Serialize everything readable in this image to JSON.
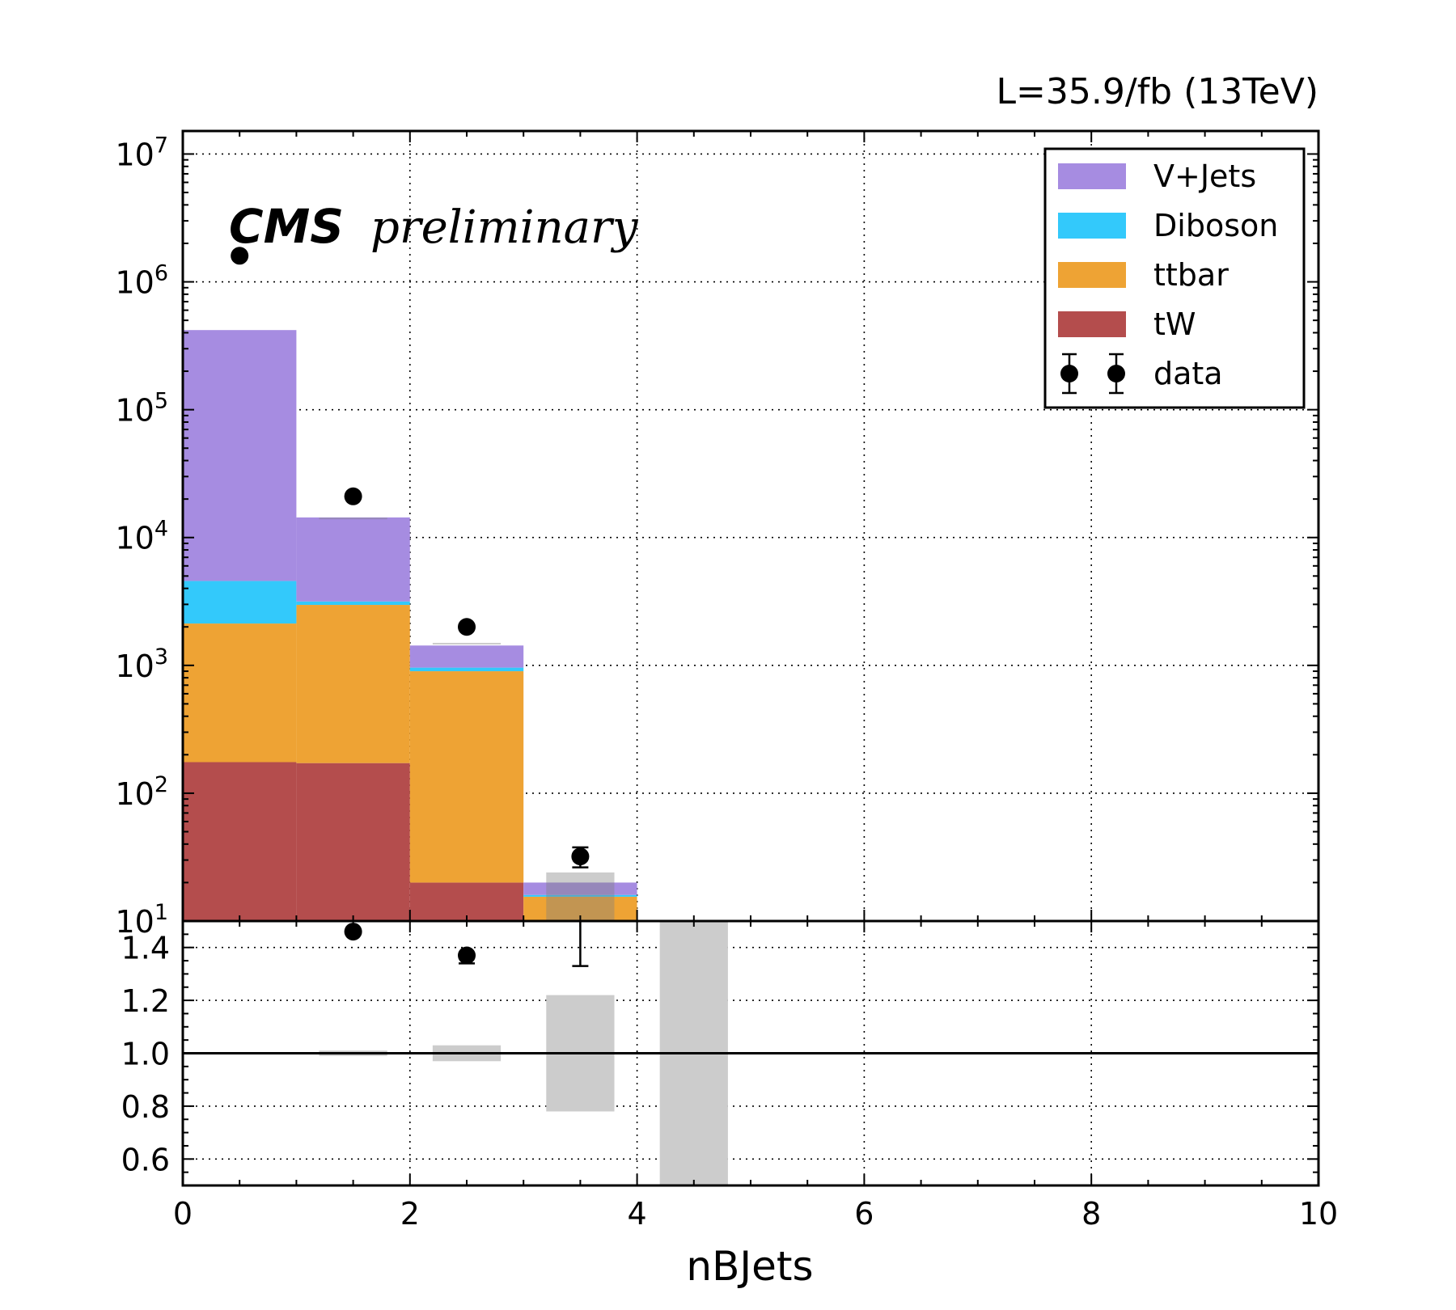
{
  "chart_data": {
    "type": "bar",
    "stacked": true,
    "lumi_label": "L=35.9/fb (13TeV)",
    "experiment_label": "CMS",
    "status_label": "preliminary",
    "xlabel": "nBJets",
    "xlim": [
      0,
      10
    ],
    "x_ticks": [
      "0",
      "2",
      "4",
      "6",
      "8",
      "10"
    ],
    "x_tick_values": [
      0,
      2,
      4,
      6,
      8,
      10
    ],
    "bin_edges": [
      0,
      1,
      2,
      3,
      4
    ],
    "upper_panel": {
      "yscale": "log",
      "ylim": [
        10,
        15000000
      ],
      "y_tick_exponents": [
        "7",
        "6",
        "5",
        "4",
        "3",
        "2",
        "1"
      ],
      "y_tick_values": [
        10000000,
        1000000,
        100000,
        10000,
        1000,
        100,
        10
      ],
      "y_tick_base": "10",
      "grid": true,
      "legend_position": "top-right"
    },
    "lower_panel": {
      "ylim": [
        0.5,
        1.5
      ],
      "y_ticks": [
        "1.4",
        "1.2",
        "1.0",
        "0.8",
        "0.6"
      ],
      "y_tick_values": [
        1.4,
        1.2,
        1.0,
        0.8,
        0.6
      ],
      "reference_line": 1.0,
      "grid": true
    },
    "series": [
      {
        "name": "tW",
        "color": "#b44d4d",
        "values": [
          175,
          172,
          20,
          0
        ]
      },
      {
        "name": "ttbar",
        "color": "#eea334",
        "values": [
          1950,
          2800,
          880,
          15.5
        ]
      },
      {
        "name": "Diboson",
        "color": "#33c9fb",
        "values": [
          2450,
          190,
          60,
          0.5
        ]
      },
      {
        "name": "V+Jets",
        "color": "#a68ce1",
        "values": [
          415000,
          11200,
          470,
          4
        ]
      }
    ],
    "data": {
      "name": "data",
      "x": [
        0.5,
        1.5,
        2.5,
        3.5
      ],
      "values": [
        1600000,
        21000,
        2000,
        32
      ],
      "errors": [
        1265,
        145,
        45,
        5.7
      ]
    },
    "mc_uncertainty": [
      {
        "bin": [
          1.2,
          1.8
        ],
        "range": [
          14100,
          14300
        ]
      },
      {
        "bin": [
          2.2,
          2.8
        ],
        "range": [
          1460,
          1500
        ]
      },
      {
        "bin": [
          3.2,
          3.8
        ],
        "range": [
          10,
          24
        ]
      }
    ],
    "ratio_points": {
      "x": [
        1.5,
        2.5,
        3.5
      ],
      "values": [
        1.46,
        1.37,
        1.6
      ],
      "errors": [
        0.01,
        0.03,
        0.27
      ]
    },
    "ratio_uncertainty": [
      {
        "bin": [
          1.2,
          1.8
        ],
        "range": [
          0.99,
          1.01
        ]
      },
      {
        "bin": [
          2.2,
          2.8
        ],
        "range": [
          0.97,
          1.03
        ]
      },
      {
        "bin": [
          3.2,
          3.8
        ],
        "range": [
          0.78,
          1.22
        ]
      },
      {
        "bin": [
          4.2,
          4.8
        ],
        "range": [
          0.5,
          1.5
        ]
      }
    ],
    "legend": [
      {
        "label": "V+Jets",
        "color": "#a68ce1",
        "kind": "patch"
      },
      {
        "label": "Diboson",
        "color": "#33c9fb",
        "kind": "patch"
      },
      {
        "label": "ttbar",
        "color": "#eea334",
        "kind": "patch"
      },
      {
        "label": "tW",
        "color": "#b44d4d",
        "kind": "patch"
      },
      {
        "label": "data",
        "color": "#000000",
        "kind": "marker"
      }
    ]
  }
}
